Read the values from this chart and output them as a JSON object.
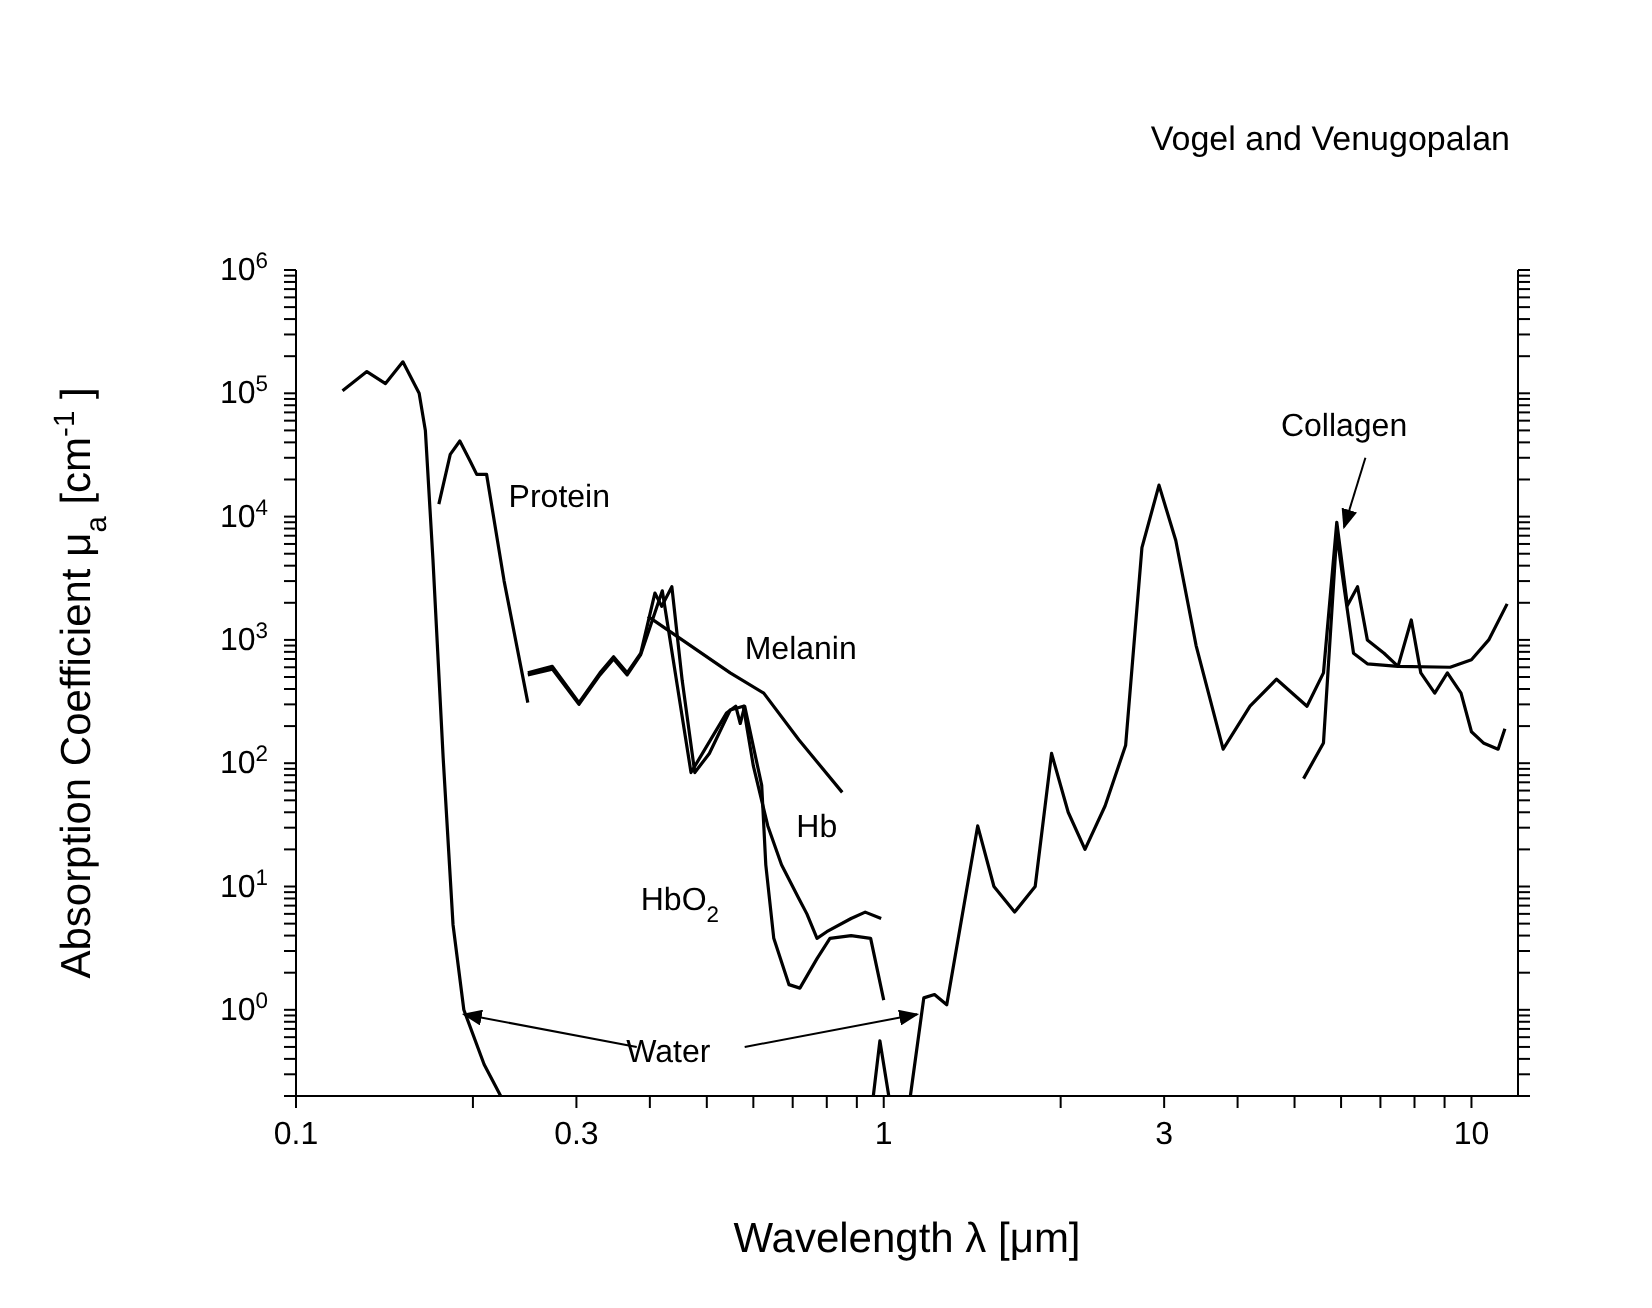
{
  "chart_data": {
    "type": "line",
    "xlabel": "Wavelength λ [μm]",
    "ylabel": "Absorption Coefficient μ$_{a}$ [cm$^{-1}$]",
    "annotations": [
      "Vogel and Venugopalan"
    ],
    "log": "xy",
    "xlim": [
      0.1,
      12
    ],
    "ylim": [
      0.2,
      1000000
    ],
    "xticks": [
      0.1,
      {
        "value": 0.2,
        "label": null
      },
      0.3,
      {
        "value": 0.4,
        "label": null
      },
      {
        "value": 0.5,
        "label": null
      },
      {
        "value": 0.6,
        "label": null
      },
      {
        "value": 0.7,
        "label": null
      },
      {
        "value": 0.8,
        "label": null
      },
      {
        "value": 0.9,
        "label": null
      },
      1,
      {
        "value": 2,
        "label": null
      },
      3,
      {
        "value": 4,
        "label": null
      },
      {
        "value": 5,
        "label": null
      },
      {
        "value": 6,
        "label": null
      },
      {
        "value": 7,
        "label": null
      },
      {
        "value": 8,
        "label": null
      },
      {
        "value": 9,
        "label": null
      },
      10
    ],
    "yticks": [
      {
        "value": 0.2,
        "label": null
      },
      {
        "value": 0.3,
        "label": null
      },
      {
        "value": 0.4,
        "label": null
      },
      {
        "value": 0.5,
        "label": null
      },
      {
        "value": 0.6,
        "label": null
      },
      {
        "value": 0.7,
        "label": null
      },
      {
        "value": 0.8,
        "label": null
      },
      {
        "value": 0.9,
        "label": null
      },
      {
        "value": 1,
        "label": "10$^{0}$"
      },
      {
        "value": 2,
        "label": null
      },
      {
        "value": 3,
        "label": null
      },
      {
        "value": 4,
        "label": null
      },
      {
        "value": 5,
        "label": null
      },
      {
        "value": 6,
        "label": null
      },
      {
        "value": 7,
        "label": null
      },
      {
        "value": 8,
        "label": null
      },
      {
        "value": 9,
        "label": null
      },
      {
        "value": 10,
        "label": "10$^{1}$"
      },
      {
        "value": 20,
        "label": null
      },
      {
        "value": 30,
        "label": null
      },
      {
        "value": 40,
        "label": null
      },
      {
        "value": 50,
        "label": null
      },
      {
        "value": 60,
        "label": null
      },
      {
        "value": 70,
        "label": null
      },
      {
        "value": 80,
        "label": null
      },
      {
        "value": 90,
        "label": null
      },
      {
        "value": 100,
        "label": "10$^{2}$"
      },
      {
        "value": 200,
        "label": null
      },
      {
        "value": 300,
        "label": null
      },
      {
        "value": 400,
        "label": null
      },
      {
        "value": 500,
        "label": null
      },
      {
        "value": 600,
        "label": null
      },
      {
        "value": 700,
        "label": null
      },
      {
        "value": 800,
        "label": null
      },
      {
        "value": 900,
        "label": null
      },
      {
        "value": 1000,
        "label": "10$^{3}$"
      },
      {
        "value": 2000,
        "label": null
      },
      {
        "value": 3000,
        "label": null
      },
      {
        "value": 4000,
        "label": null
      },
      {
        "value": 5000,
        "label": null
      },
      {
        "value": 6000,
        "label": null
      },
      {
        "value": 7000,
        "label": null
      },
      {
        "value": 8000,
        "label": null
      },
      {
        "value": 9000,
        "label": null
      },
      {
        "value": 10000,
        "label": "10$^{4}$"
      },
      {
        "value": 20000,
        "label": null
      },
      {
        "value": 30000,
        "label": null
      },
      {
        "value": 40000,
        "label": null
      },
      {
        "value": 50000,
        "label": null
      },
      {
        "value": 60000,
        "label": null
      },
      {
        "value": 70000,
        "label": null
      },
      {
        "value": 80000,
        "label": null
      },
      {
        "value": 90000,
        "label": null
      },
      {
        "value": 100000,
        "label": "10$^{5}$"
      },
      {
        "value": 200000,
        "label": null
      },
      {
        "value": 300000,
        "label": null
      },
      {
        "value": 400000,
        "label": null
      },
      {
        "value": 500000,
        "label": null
      },
      {
        "value": 600000,
        "label": null
      },
      {
        "value": 700000,
        "label": null
      },
      {
        "value": 800000,
        "label": null
      },
      {
        "value": 900000,
        "label": null
      },
      {
        "value": 1000000,
        "label": "10$^{6}$"
      }
    ],
    "series": [
      {
        "name": "Water",
        "color": "#000000",
        "x": [
          0.12,
          0.132,
          0.142,
          0.152,
          0.162,
          0.166,
          0.171,
          0.178,
          0.185,
          0.193,
          0.209,
          0.223,
          0.6,
          0.96,
          0.985,
          1.02,
          1.05,
          1.11,
          1.17,
          1.22,
          1.28,
          1.445,
          1.54,
          1.67,
          1.81,
          1.93,
          2.06,
          2.2,
          2.38,
          2.58,
          2.75,
          2.94,
          3.14,
          3.4,
          3.78,
          4.2,
          4.66,
          5.25,
          5.6,
          5.9,
          6.15,
          6.4,
          6.65,
          7.1,
          7.5,
          7.9,
          8.2,
          8.66,
          9.1,
          9.6,
          10,
          10.5,
          11.1,
          11.4
        ],
        "values": [
          105000,
          150000,
          120000,
          180000,
          100000,
          50000,
          4500,
          110,
          4.9,
          1,
          0.36,
          0.2,
          null,
          0.2,
          0.56,
          0.2,
          null,
          0.2,
          1.25,
          1.33,
          1.1,
          31,
          10,
          6.2,
          10,
          120,
          40,
          20,
          45,
          140,
          5600,
          18000,
          6400,
          900,
          130,
          290,
          480,
          290,
          540,
          9000,
          1900,
          2700,
          1000,
          780,
          610,
          1450,
          540,
          370,
          540,
          370,
          180,
          145,
          130,
          190
        ]
      },
      {
        "name": "Protein",
        "color": "#000000",
        "x": [
          0.175,
          0.183,
          0.19,
          0.198,
          0.203,
          0.211,
          0.226,
          0.248
        ],
        "values": [
          12600,
          32000,
          41000,
          28000,
          22000,
          22000,
          3000,
          310
        ]
      },
      {
        "name": "Melanin",
        "color": "#000000",
        "x": [
          0.397,
          0.548,
          0.625,
          0.717,
          0.85
        ],
        "values": [
          1550,
          540,
          370,
          155,
          58
        ]
      },
      {
        "name": "Hb",
        "color": "#000000",
        "x": [
          0.248,
          0.273,
          0.303,
          0.329,
          0.347,
          0.366,
          0.386,
          0.408,
          0.419,
          0.436,
          0.454,
          0.477,
          0.505,
          0.548,
          0.577,
          0.6,
          0.635,
          0.67,
          0.717,
          0.74,
          0.77,
          0.8,
          0.88,
          0.93,
          0.99
        ],
        "values": [
          540,
          610,
          310,
          540,
          730,
          540,
          780,
          2400,
          1870,
          2700,
          470,
          84,
          120,
          270,
          290,
          95,
          31,
          15,
          8,
          6,
          3.8,
          4.3,
          5.5,
          6.2,
          5.5
        ]
      },
      {
        "name": "HbO$_{2}$",
        "color": "#000000",
        "x": [
          0.248,
          0.273,
          0.303,
          0.329,
          0.347,
          0.366,
          0.386,
          0.42,
          0.47,
          0.54,
          0.56,
          0.57,
          0.58,
          0.62,
          0.63,
          0.65,
          0.69,
          0.72,
          0.77,
          0.81,
          0.88,
          0.95,
          1.0
        ],
        "values": [
          520,
          580,
          300,
          520,
          700,
          520,
          760,
          2500,
          84,
          255,
          290,
          210,
          290,
          66,
          15,
          3.8,
          1.6,
          1.5,
          2.6,
          3.8,
          4,
          3.8,
          1.2
        ]
      },
      {
        "name": "Collagen",
        "color": "#000000",
        "x": [
          5.18,
          5.6,
          5.9,
          6.05,
          6.3,
          6.65,
          7.5,
          9.2,
          10,
          10.7,
          11.5
        ],
        "values": [
          75,
          146,
          7300,
          3000,
          780,
          640,
          610,
          600,
          690,
          1000,
          1960
        ]
      }
    ]
  }
}
